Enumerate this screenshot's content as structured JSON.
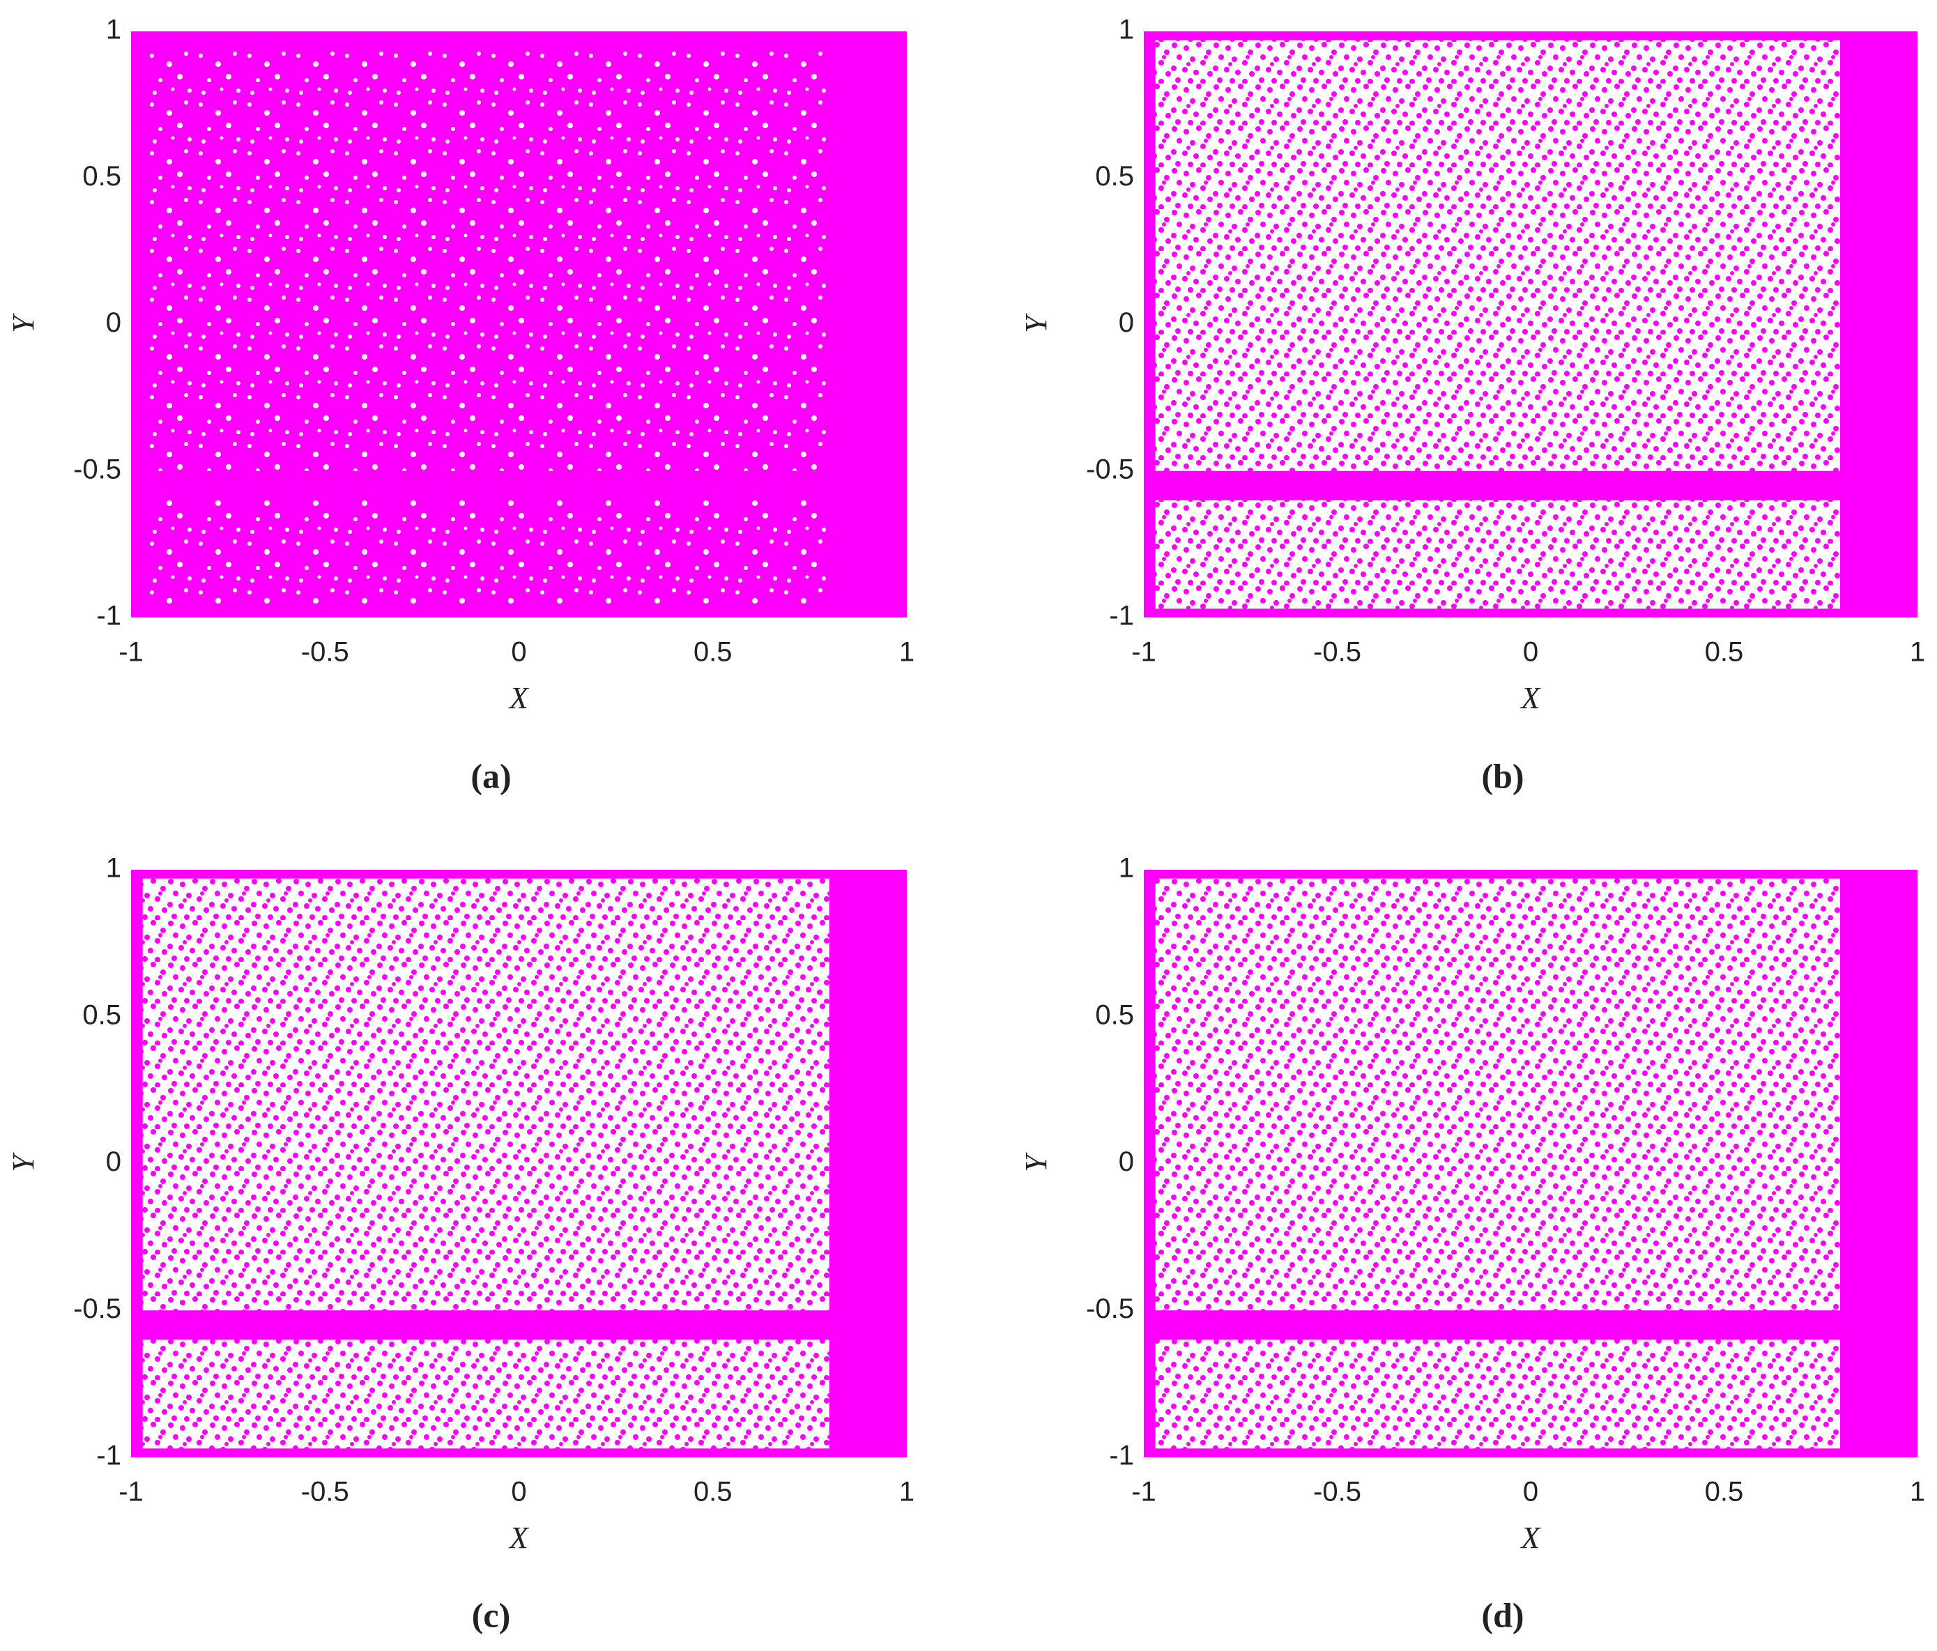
{
  "chart_data": [
    {
      "type": "region",
      "label": "(a)",
      "xlabel": "X",
      "ylabel": "Y",
      "color": "#ff00ff",
      "xlim": [
        -1,
        1
      ],
      "ylim": [
        -1,
        1
      ],
      "xticks": [
        -1,
        -0.5,
        0,
        0.5,
        1
      ],
      "yticks": [
        -1,
        -0.5,
        0,
        0.5,
        1
      ],
      "regions": [
        {
          "density": "dense",
          "xlim": [
            -1,
            1
          ],
          "ylim": [
            -1,
            1
          ]
        },
        {
          "density": "medium",
          "xlim": [
            -0.97,
            0.8
          ],
          "ylim": [
            -0.5,
            0.95
          ]
        },
        {
          "density": "medium",
          "xlim": [
            -0.97,
            0.8
          ],
          "ylim": [
            -0.97,
            -0.6
          ]
        }
      ]
    },
    {
      "type": "region",
      "label": "(b)",
      "xlabel": "X",
      "ylabel": "Y",
      "color": "#ff00ff",
      "xlim": [
        -1,
        1
      ],
      "ylim": [
        -1,
        1
      ],
      "xticks": [
        -1,
        -0.5,
        0,
        0.5,
        1
      ],
      "yticks": [
        -1,
        -0.5,
        0,
        0.5,
        1
      ],
      "regions": [
        {
          "density": "dense",
          "xlim": [
            -1,
            1
          ],
          "ylim": [
            -1,
            1
          ]
        },
        {
          "density": "sparse",
          "xlim": [
            -0.97,
            0.8
          ],
          "ylim": [
            -0.5,
            0.97
          ]
        },
        {
          "density": "sparse",
          "xlim": [
            -0.97,
            0.8
          ],
          "ylim": [
            -0.97,
            -0.6
          ]
        }
      ]
    },
    {
      "type": "region",
      "label": "(c)",
      "xlabel": "X",
      "ylabel": "Y",
      "color": "#ff00ff",
      "xlim": [
        -1,
        1
      ],
      "ylim": [
        -1,
        1
      ],
      "xticks": [
        -1,
        -0.5,
        0,
        0.5,
        1
      ],
      "yticks": [
        -1,
        -0.5,
        0,
        0.5,
        1
      ],
      "regions": [
        {
          "density": "dense",
          "xlim": [
            -1,
            1
          ],
          "ylim": [
            -1,
            1
          ]
        },
        {
          "density": "sparse",
          "xlim": [
            -0.97,
            0.8
          ],
          "ylim": [
            -0.5,
            0.97
          ]
        },
        {
          "density": "sparse",
          "xlim": [
            -0.97,
            0.8
          ],
          "ylim": [
            -0.97,
            -0.6
          ]
        }
      ]
    },
    {
      "type": "region",
      "label": "(d)",
      "xlabel": "X",
      "ylabel": "Y",
      "color": "#ff00ff",
      "xlim": [
        -1,
        1
      ],
      "ylim": [
        -1,
        1
      ],
      "xticks": [
        -1,
        -0.5,
        0,
        0.5,
        1
      ],
      "yticks": [
        -1,
        -0.5,
        0,
        0.5,
        1
      ],
      "regions": [
        {
          "density": "dense",
          "xlim": [
            -1,
            1
          ],
          "ylim": [
            -1,
            1
          ]
        },
        {
          "density": "sparse",
          "xlim": [
            -0.97,
            0.8
          ],
          "ylim": [
            -0.5,
            0.97
          ]
        },
        {
          "density": "sparse",
          "xlim": [
            -0.97,
            0.8
          ],
          "ylim": [
            -0.97,
            -0.6
          ]
        }
      ]
    }
  ]
}
